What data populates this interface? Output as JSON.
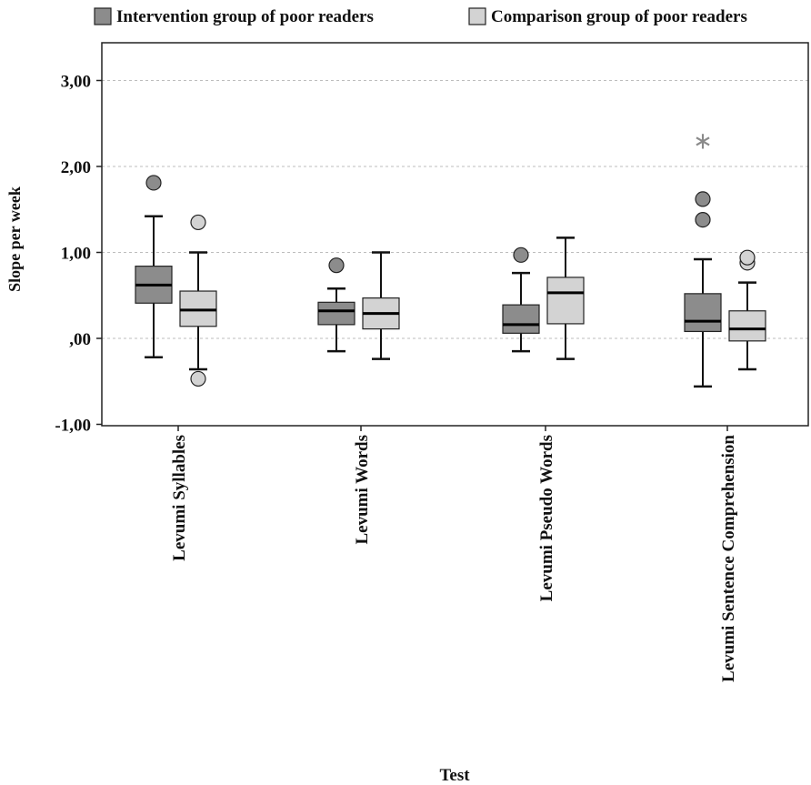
{
  "chart_data": {
    "type": "boxplot",
    "xlabel": "Test",
    "ylabel": "Slope per week",
    "ylim": [
      -1.0,
      3.4
    ],
    "yticks": [
      {
        "value": -1.0,
        "label": "-1,00"
      },
      {
        "value": 0.0,
        "label": ",00"
      },
      {
        "value": 1.0,
        "label": "1,00"
      },
      {
        "value": 2.0,
        "label": "2,00"
      },
      {
        "value": 3.0,
        "label": "3,00"
      }
    ],
    "grid": true,
    "legend_position": "top",
    "categories": [
      "Levumi Syllables",
      "Levumi Words",
      "Levumi Pseudo Words",
      "Levumi Sentence Comprehension"
    ],
    "series": [
      {
        "name": "Intervention group of poor readers",
        "color": "#8c8c8c",
        "boxes": [
          {
            "whisker_low": -0.22,
            "q1": 0.41,
            "median": 0.62,
            "q3": 0.84,
            "whisker_high": 1.42,
            "outliers": [
              1.81
            ],
            "extremes": []
          },
          {
            "whisker_low": -0.15,
            "q1": 0.16,
            "median": 0.32,
            "q3": 0.42,
            "whisker_high": 0.58,
            "outliers": [
              0.85
            ],
            "extremes": []
          },
          {
            "whisker_low": -0.15,
            "q1": 0.06,
            "median": 0.16,
            "q3": 0.39,
            "whisker_high": 0.76,
            "outliers": [
              0.97
            ],
            "extremes": []
          },
          {
            "whisker_low": -0.56,
            "q1": 0.08,
            "median": 0.2,
            "q3": 0.52,
            "whisker_high": 0.92,
            "outliers": [
              1.38,
              1.62
            ],
            "extremes": [
              2.3
            ]
          }
        ]
      },
      {
        "name": "Comparison group of poor readers",
        "color": "#d3d3d3",
        "boxes": [
          {
            "whisker_low": -0.36,
            "q1": 0.14,
            "median": 0.33,
            "q3": 0.55,
            "whisker_high": 1.0,
            "outliers": [
              1.35,
              -0.47
            ],
            "extremes": []
          },
          {
            "whisker_low": -0.24,
            "q1": 0.11,
            "median": 0.29,
            "q3": 0.47,
            "whisker_high": 1.0,
            "outliers": [],
            "extremes": []
          },
          {
            "whisker_low": -0.24,
            "q1": 0.17,
            "median": 0.53,
            "q3": 0.71,
            "whisker_high": 1.17,
            "outliers": [],
            "extremes": []
          },
          {
            "whisker_low": -0.36,
            "q1": -0.03,
            "median": 0.11,
            "q3": 0.32,
            "whisker_high": 0.65,
            "outliers": [
              0.88,
              0.94
            ],
            "extremes": []
          }
        ]
      }
    ]
  }
}
